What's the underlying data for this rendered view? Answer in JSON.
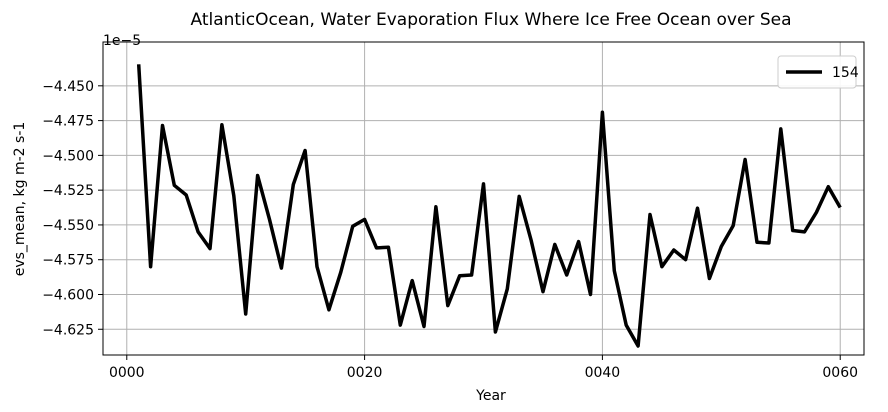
{
  "chart_data": {
    "type": "line",
    "title": "AtlanticOcean, Water Evaporation Flux Where Ice Free Ocean over Sea",
    "xlabel": "Year",
    "ylabel": "evs_mean, kg m-2 s-1",
    "offset_text": "1e−5",
    "xlim": [
      -2,
      62
    ],
    "ylim": [
      -4.6435,
      -4.4185
    ],
    "x_ticks": [
      0,
      20,
      40,
      60
    ],
    "x_tick_labels": [
      "0000",
      "0020",
      "0040",
      "0060"
    ],
    "y_ticks": [
      -4.625,
      -4.6,
      -4.575,
      -4.55,
      -4.525,
      -4.5,
      -4.475,
      -4.45
    ],
    "y_tick_labels": [
      "−4.625",
      "−4.600",
      "−4.575",
      "−4.550",
      "−4.525",
      "−4.500",
      "−4.475",
      "−4.450"
    ],
    "grid": true,
    "legend_position": "top-right",
    "series": [
      {
        "name": "154",
        "color": "#000000",
        "x": [
          1,
          2,
          3,
          4,
          5,
          6,
          7,
          8,
          9,
          10,
          11,
          12,
          13,
          14,
          15,
          16,
          17,
          18,
          19,
          20,
          21,
          22,
          23,
          24,
          25,
          26,
          27,
          28,
          29,
          30,
          31,
          32,
          33,
          34,
          35,
          36,
          37,
          38,
          39,
          40,
          41,
          42,
          43,
          44,
          45,
          46,
          47,
          48,
          49,
          50,
          51,
          52,
          53,
          54,
          55,
          56,
          57,
          58,
          59,
          60
        ],
        "values": [
          -4.4345,
          -4.58,
          -4.4785,
          -4.5215,
          -4.5285,
          -4.555,
          -4.567,
          -4.478,
          -4.529,
          -4.614,
          -4.5145,
          -4.546,
          -4.581,
          -4.521,
          -4.4965,
          -4.58,
          -4.611,
          -4.584,
          -4.551,
          -4.546,
          -4.5665,
          -4.566,
          -4.622,
          -4.59,
          -4.623,
          -4.537,
          -4.608,
          -4.5865,
          -4.586,
          -4.5205,
          -4.627,
          -4.596,
          -4.5295,
          -4.561,
          -4.598,
          -4.564,
          -4.586,
          -4.562,
          -4.6,
          -4.469,
          -4.583,
          -4.622,
          -4.637,
          -4.5425,
          -4.58,
          -4.568,
          -4.575,
          -4.538,
          -4.5885,
          -4.5655,
          -4.5505,
          -4.503,
          -4.5625,
          -4.563,
          -4.481,
          -4.554,
          -4.555,
          -4.541,
          -4.5225,
          -4.5375
        ]
      }
    ]
  }
}
